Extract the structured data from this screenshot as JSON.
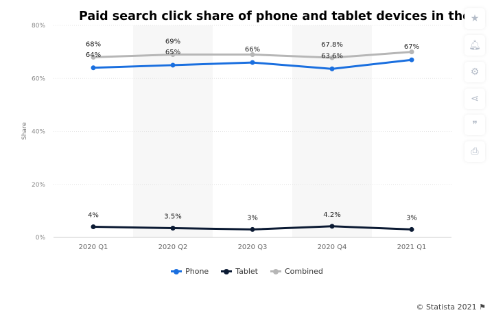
{
  "chart_data": {
    "type": "line",
    "title": "Paid search click share of phone and tablet devices in the",
    "ylabel": "Share",
    "categories": [
      "2020 Q1",
      "2020 Q2",
      "2020 Q3",
      "2020 Q4",
      "2021 Q1"
    ],
    "ylim": [
      0,
      80
    ],
    "yticks": [
      "0%",
      "20%",
      "40%",
      "60%",
      "80%"
    ],
    "grid": true,
    "legend": "bottom",
    "series": [
      {
        "name": "Phone",
        "color": "#1a6fdf",
        "values": [
          64,
          65,
          66,
          63.6,
          67
        ],
        "labels": [
          "64%",
          "65%",
          "66%",
          "63.6%",
          "67%"
        ]
      },
      {
        "name": "Tablet",
        "color": "#0b1a33",
        "values": [
          4,
          3.5,
          3,
          4.2,
          3
        ],
        "labels": [
          "4%",
          "3.5%",
          "3%",
          "4.2%",
          "3%"
        ]
      },
      {
        "name": "Combined",
        "color": "#b6b6b6",
        "values": [
          68,
          69,
          69,
          67.8,
          70
        ],
        "labels": [
          "68%",
          "69%",
          "",
          "67.8%",
          ""
        ]
      }
    ]
  },
  "sidebar": [
    "star-icon",
    "bell-icon",
    "gear-icon",
    "share-icon",
    "quote-icon",
    "print-icon"
  ],
  "credit": "© Statista 2021"
}
